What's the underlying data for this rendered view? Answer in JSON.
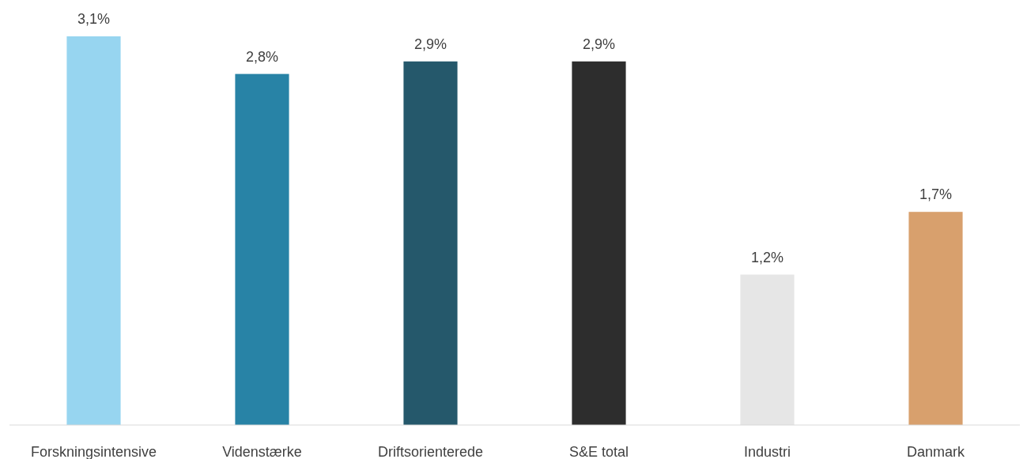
{
  "chart_data": {
    "type": "bar",
    "categories": [
      "Forskningsintensive",
      "Videnstærke",
      "Driftsorienterede",
      "S&E total",
      "Industri",
      "Danmark"
    ],
    "values": [
      3.1,
      2.8,
      2.9,
      2.9,
      1.2,
      1.7
    ],
    "colors": [
      "#97d5f0",
      "#2883a6",
      "#25586b",
      "#2d2d2d",
      "#e6e6e6",
      "#d8a06d"
    ],
    "value_labels": [
      "3,1%",
      "2,8%",
      "2,9%",
      "2,9%",
      "1,2%",
      "1,7%"
    ]
  }
}
